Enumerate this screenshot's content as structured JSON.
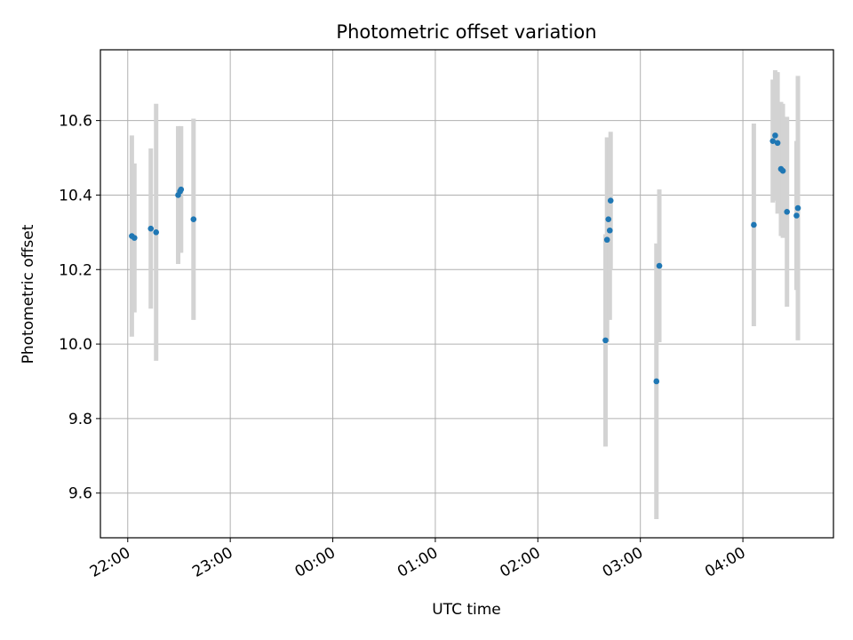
{
  "chart_data": {
    "type": "scatter",
    "title": "Photometric offset variation",
    "xlabel": "UTC time",
    "ylabel": "Photometric offset",
    "x_ticks": [
      {
        "t": 0,
        "label": "22:00"
      },
      {
        "t": 60,
        "label": "23:00"
      },
      {
        "t": 120,
        "label": "00:00"
      },
      {
        "t": 180,
        "label": "01:00"
      },
      {
        "t": 240,
        "label": "02:00"
      },
      {
        "t": 300,
        "label": "03:00"
      },
      {
        "t": 360,
        "label": "04:00"
      }
    ],
    "y_ticks": [
      9.6,
      9.8,
      10.0,
      10.2,
      10.4,
      10.6
    ],
    "y_tick_labels": [
      "9.6",
      "9.8",
      "10.0",
      "10.2",
      "10.4",
      "10.6"
    ],
    "xlim": [
      -16,
      413
    ],
    "ylim": [
      9.48,
      10.79
    ],
    "grid": true,
    "marker_color": "#1f77b4",
    "errorbar_color": "#d3d3d3",
    "points": [
      {
        "t": 2.4,
        "y": 10.29,
        "err": 0.27
      },
      {
        "t": 3.9,
        "y": 10.285,
        "err": 0.2
      },
      {
        "t": 13.5,
        "y": 10.31,
        "err": 0.215
      },
      {
        "t": 16.6,
        "y": 10.3,
        "err": 0.345
      },
      {
        "t": 29.5,
        "y": 10.4,
        "err": 0.185
      },
      {
        "t": 30.6,
        "y": 10.41,
        "err": 0.165
      },
      {
        "t": 31.2,
        "y": 10.415,
        "err": 0.17
      },
      {
        "t": 38.5,
        "y": 10.335,
        "err": 0.27
      },
      {
        "t": 279.6,
        "y": 10.01,
        "err": 0.285
      },
      {
        "t": 280.5,
        "y": 10.28,
        "err": 0.275
      },
      {
        "t": 281.3,
        "y": 10.335,
        "err": 0.215
      },
      {
        "t": 282.1,
        "y": 10.305,
        "err": 0.24
      },
      {
        "t": 282.6,
        "y": 10.385,
        "err": 0.185
      },
      {
        "t": 309.4,
        "y": 9.9,
        "err": 0.37
      },
      {
        "t": 311.1,
        "y": 10.21,
        "err": 0.205
      },
      {
        "t": 366.4,
        "y": 10.32,
        "err": 0.272
      },
      {
        "t": 377.5,
        "y": 10.545,
        "err": 0.165
      },
      {
        "t": 378.9,
        "y": 10.56,
        "err": 0.175
      },
      {
        "t": 380.3,
        "y": 10.54,
        "err": 0.19
      },
      {
        "t": 382.3,
        "y": 10.47,
        "err": 0.18
      },
      {
        "t": 383.4,
        "y": 10.465,
        "err": 0.18
      },
      {
        "t": 385.8,
        "y": 10.355,
        "err": 0.255
      },
      {
        "t": 391.4,
        "y": 10.345,
        "err": 0.2
      },
      {
        "t": 392.2,
        "y": 10.365,
        "err": 0.355
      }
    ]
  }
}
